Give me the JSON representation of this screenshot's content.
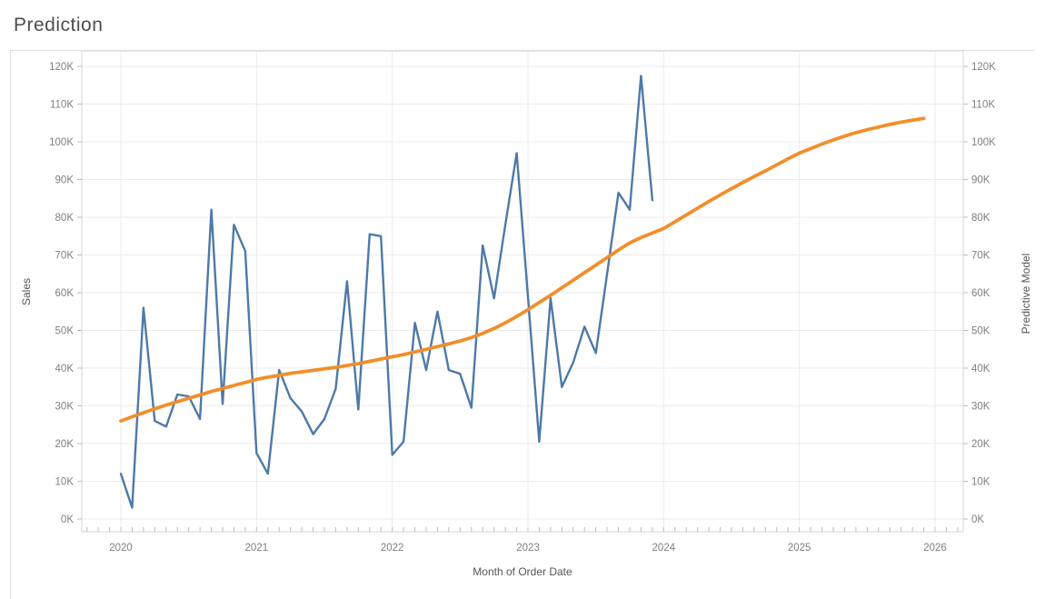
{
  "title": "Prediction",
  "axes": {
    "left": {
      "title": "Sales"
    },
    "right": {
      "title": "Predictive Model"
    },
    "bottom": {
      "title": "Month of Order Date"
    }
  },
  "colors": {
    "sales_line": "#4e79a7",
    "prediction_line": "#f28e2b",
    "gridline": "#ebebeb",
    "plot_border": "#d6d6d6",
    "tick_mark": "#bdbdbd",
    "tick_label": "#7f7f7f"
  },
  "chart_data": {
    "type": "line",
    "title": "Prediction",
    "xlabel": "Month of Order Date",
    "ylabel_left": "Sales",
    "ylabel_right": "Predictive Model",
    "y_tick_labels": [
      "0K",
      "10K",
      "20K",
      "30K",
      "40K",
      "50K",
      "60K",
      "70K",
      "80K",
      "90K",
      "100K",
      "110K",
      "120K"
    ],
    "y_tick_values": [
      0,
      10,
      20,
      30,
      40,
      50,
      60,
      70,
      80,
      90,
      100,
      110,
      120
    ],
    "x_tick_labels": [
      "2020",
      "2021",
      "2022",
      "2023",
      "2024",
      "2025",
      "2026"
    ],
    "ylim": [
      0,
      124
    ],
    "grid": "horizontal every 10K, vertical at year ticks",
    "legend": "none",
    "units": "thousands of currency (K)",
    "series": [
      {
        "name": "Sales",
        "axis": "left",
        "color": "#4e79a7",
        "start": "2020-01",
        "frequency": "monthly",
        "values": [
          12,
          3,
          56,
          26,
          24.5,
          33,
          32.5,
          26.5,
          82,
          30.5,
          78,
          71,
          17.5,
          12,
          39.5,
          32,
          28.5,
          22.5,
          26.5,
          34.5,
          63,
          29,
          75.5,
          75,
          17,
          20.5,
          52,
          39.5,
          55,
          39.5,
          38.5,
          29.5,
          72.5,
          58.5,
          78,
          97,
          59,
          20.5,
          58.5,
          35,
          41.5,
          51,
          44,
          65,
          86.5,
          82,
          117.5,
          84.5
        ]
      },
      {
        "name": "Predictive Model",
        "axis": "right",
        "color": "#f28e2b",
        "start": "2020-01",
        "frequency": "monthly",
        "values": [
          26,
          27.1,
          28.2,
          29.2,
          30.2,
          31.1,
          32,
          32.9,
          33.8,
          34.6,
          35.4,
          36.2,
          37,
          37.6,
          38.1,
          38.6,
          39,
          39.4,
          39.8,
          40.2,
          40.7,
          41.2,
          41.8,
          42.4,
          43,
          43.6,
          44.3,
          45,
          45.7,
          46.4,
          47.2,
          48.1,
          49.2,
          50.5,
          52,
          53.7,
          55.5,
          57.4,
          59.3,
          61.3,
          63.3,
          65.3,
          67.3,
          69.3,
          71.3,
          73.2,
          74.6,
          75.8,
          77,
          78.8,
          80.6,
          82.4,
          84.2,
          85.9,
          87.6,
          89.2,
          90.8,
          92.3,
          93.9,
          95.5,
          97,
          98.2,
          99.4,
          100.5,
          101.5,
          102.4,
          103.2,
          103.9,
          104.6,
          105.2,
          105.7,
          106.2
        ]
      }
    ]
  }
}
